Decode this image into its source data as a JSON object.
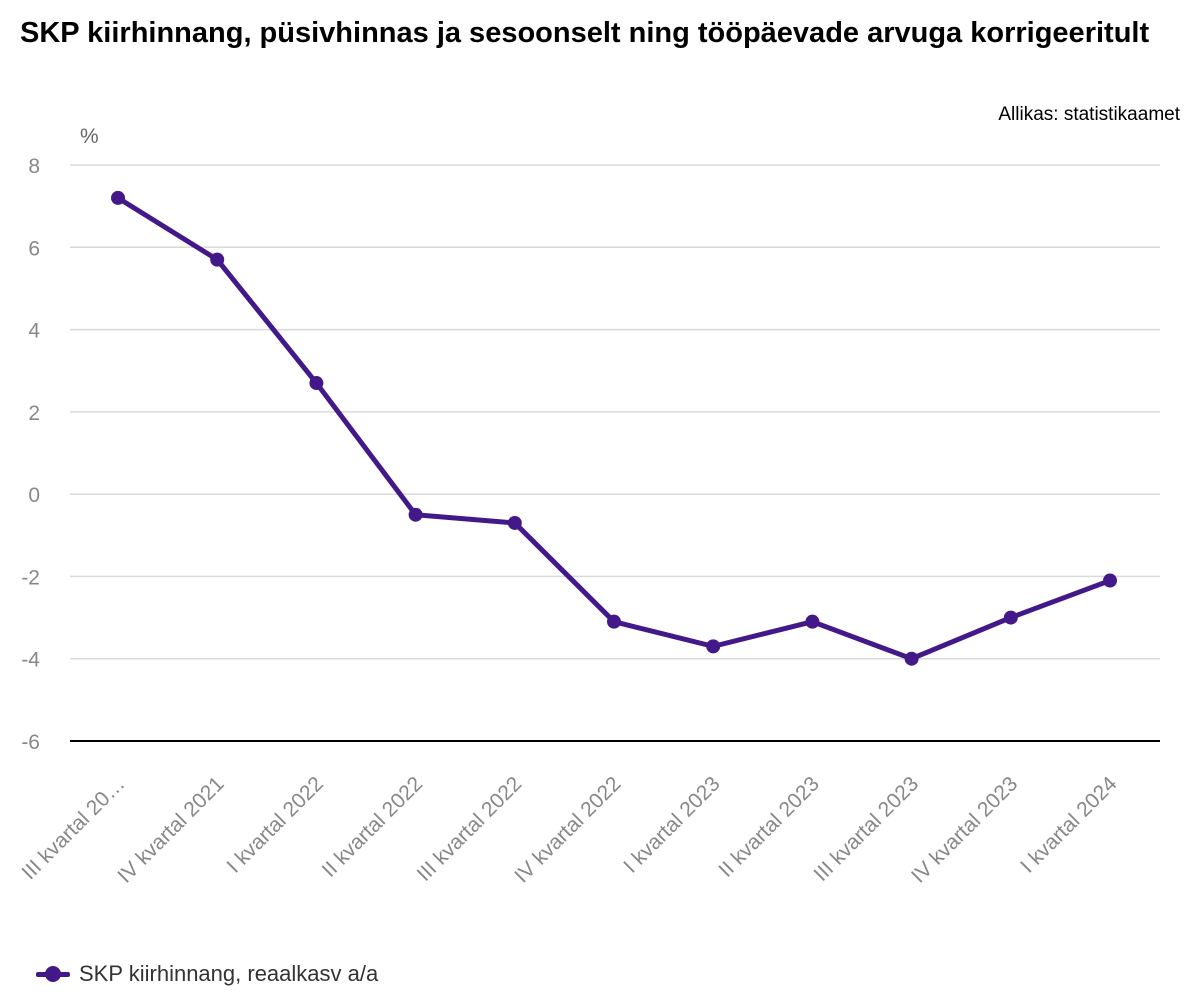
{
  "source": "Allikas: statistikaamet",
  "colors": {
    "series": "#43198a",
    "grid": "#d9d9d9",
    "axis": "#000000",
    "tick_text": "#888888",
    "unit_text": "#666666"
  },
  "chart_data": {
    "type": "line",
    "title": "SKP kiirhinnang, püsivhinnas ja sesoonselt ning tööpäevade arvuga korrigeeritult",
    "ylabel": "%",
    "xlabel": "",
    "ylim": [
      -6,
      8
    ],
    "yticks": [
      8,
      6,
      4,
      2,
      0,
      -2,
      -4,
      -6
    ],
    "grid": true,
    "legend_position": "bottom-left",
    "categories": [
      "III kvartal 20…",
      "IV kvartal 2021",
      "I kvartal 2022",
      "II kvartal 2022",
      "III kvartal 2022",
      "IV kvartal 2022",
      "I kvartal 2023",
      "II kvartal 2023",
      "III kvartal 2023",
      "IV kvartal 2023",
      "I kvartal 2024"
    ],
    "series": [
      {
        "name": "SKP kiirhinnang, reaalkasv a/a",
        "values": [
          7.2,
          5.7,
          2.7,
          -0.5,
          -0.7,
          -3.1,
          -3.7,
          -3.1,
          -4.0,
          -3.0,
          -2.1
        ]
      }
    ]
  }
}
